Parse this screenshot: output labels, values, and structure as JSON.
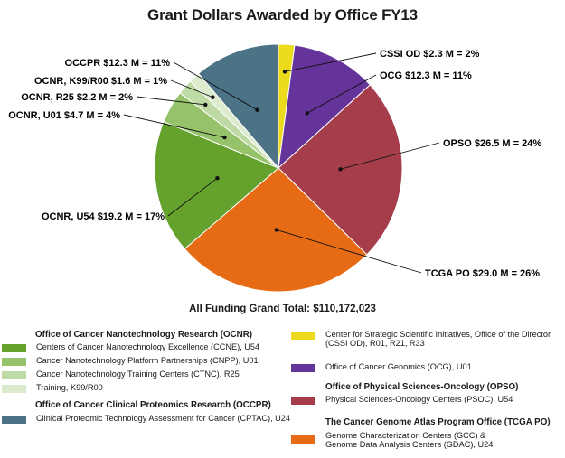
{
  "chart_data": {
    "type": "pie",
    "title": "Grant Dollars Awarded by Office FY13",
    "slices": [
      {
        "name": "CSSI OD",
        "value": 2.3,
        "percent": 2,
        "label": "CSSI OD $2.3 M = 2%",
        "color": "#ecdb1c"
      },
      {
        "name": "OCG",
        "value": 12.3,
        "percent": 11,
        "label": "OCG $12.3 M = 11%",
        "color": "#65349a"
      },
      {
        "name": "OPSO",
        "value": 26.5,
        "percent": 24,
        "label": "OPSO $26.5 M = 24%",
        "color": "#a53e4a"
      },
      {
        "name": "TCGA PO",
        "value": 29.0,
        "percent": 26,
        "label": "TCGA PO $29.0 M = 26%",
        "color": "#e76b14"
      },
      {
        "name": "OCNR, U54",
        "value": 19.2,
        "percent": 17,
        "label": "OCNR, U54 $19.2 M = 17%",
        "color": "#64a12d"
      },
      {
        "name": "OCNR, U01",
        "value": 4.7,
        "percent": 4,
        "label": "OCNR, U01 $4.7 M = 4%",
        "color": "#96c36a"
      },
      {
        "name": "OCNR, R25",
        "value": 2.2,
        "percent": 2,
        "label": "OCNR, R25 $2.2 M = 2%",
        "color": "#bfdba5"
      },
      {
        "name": "OCNR, K99/R00",
        "value": 1.6,
        "percent": 1,
        "label": "OCNR, K99/R00 $1.6 M = 1%",
        "color": "#dcebcd"
      },
      {
        "name": "OCCPR",
        "value": 12.3,
        "percent": 11,
        "label": "OCCPR $12.3 M = 11%",
        "color": "#4b7285"
      }
    ],
    "grand_total": "All Funding Grand Total: $110,172,023"
  },
  "legend": {
    "left": {
      "ocnr_heading": "Office of Cancer Nanotechnology Research (OCNR)",
      "ocnr_items": [
        {
          "text": "Centers of Cancer Nanotechnology Excellence (CCNE), U54",
          "color": "#64a12d"
        },
        {
          "text": "Cancer Nanotechnology Platform Partnerships (CNPP), U01",
          "color": "#96c36a"
        },
        {
          "text": "Cancer Nanotechnology Training Centers (CTNC), R25",
          "color": "#bfdba5"
        },
        {
          "text": "Training, K99/R00",
          "color": "#dcebcd"
        }
      ],
      "occpr_heading": "Office of Cancer Clinical Proteomics Research (OCCPR)",
      "occpr_items": [
        {
          "text": "Clinical Proteomic Technology Assessment for Cancer (CPTAC), U24",
          "color": "#4b7285"
        }
      ]
    },
    "right": {
      "cssi_line1": "Center for Strategic Scientific Initiatives, Office of the Director",
      "cssi_line2": "(CSSI OD), R01, R21, R33",
      "cssi_color": "#ecdb1c",
      "ocg_text": "Office of Cancer Genomics (OCG), U01",
      "ocg_color": "#65349a",
      "opso_heading": "Office of Physical Sciences-Oncology (OPSO)",
      "opso_text": "Physical Sciences-Oncology Centers (PSOC), U54",
      "opso_color": "#a53e4a",
      "tcga_heading": "The Cancer Genome Atlas Program Office (TCGA PO)",
      "tcga_line1": "Genome Characterization Centers (GCC) &",
      "tcga_line2": "Genome Data Analysis Centers (GDAC), U24",
      "tcga_color": "#e76b14"
    }
  }
}
